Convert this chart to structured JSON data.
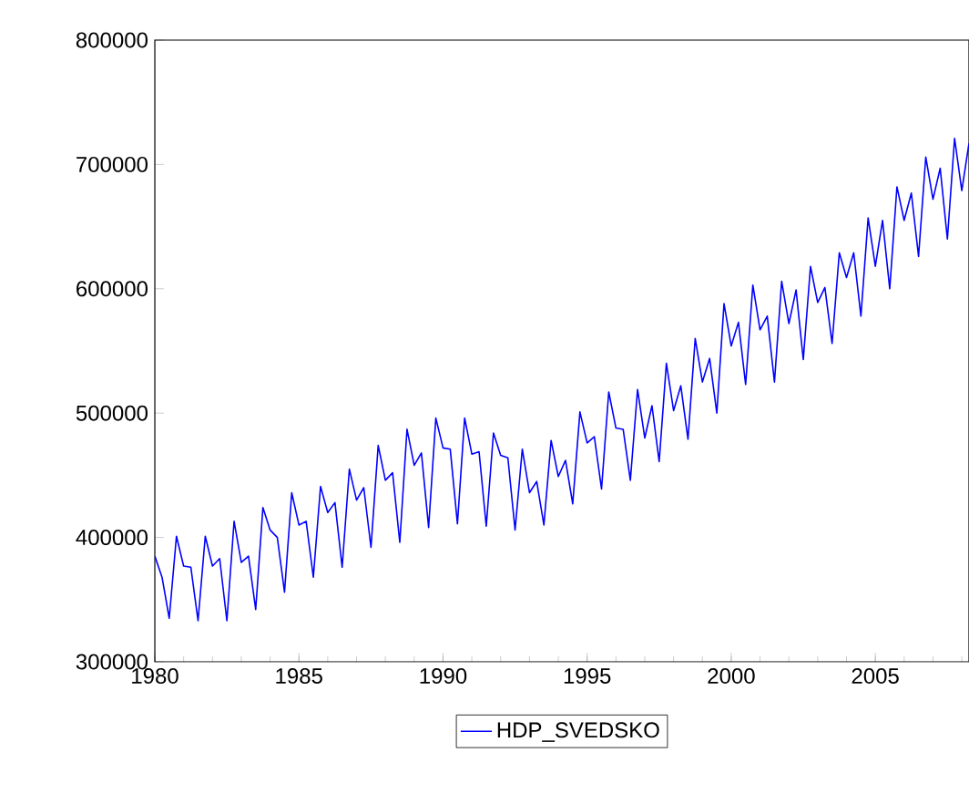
{
  "chart_data": {
    "type": "line",
    "x": [
      1980.0,
      1980.25,
      1980.5,
      1980.75,
      1981.0,
      1981.25,
      1981.5,
      1981.75,
      1982.0,
      1982.25,
      1982.5,
      1982.75,
      1983.0,
      1983.25,
      1983.5,
      1983.75,
      1984.0,
      1984.25,
      1984.5,
      1984.75,
      1985.0,
      1985.25,
      1985.5,
      1985.75,
      1986.0,
      1986.25,
      1986.5,
      1986.75,
      1987.0,
      1987.25,
      1987.5,
      1987.75,
      1988.0,
      1988.25,
      1988.5,
      1988.75,
      1989.0,
      1989.25,
      1989.5,
      1989.75,
      1990.0,
      1990.25,
      1990.5,
      1990.75,
      1991.0,
      1991.25,
      1991.5,
      1991.75,
      1992.0,
      1992.25,
      1992.5,
      1992.75,
      1993.0,
      1993.25,
      1993.5,
      1993.75,
      1994.0,
      1994.25,
      1994.5,
      1994.75,
      1995.0,
      1995.25,
      1995.5,
      1995.75,
      1996.0,
      1996.25,
      1996.5,
      1996.75,
      1997.0,
      1997.25,
      1997.5,
      1997.75,
      1998.0,
      1998.25,
      1998.5,
      1998.75,
      1999.0,
      1999.25,
      1999.5,
      1999.75,
      2000.0,
      2000.25,
      2000.5,
      2000.75,
      2001.0,
      2001.25,
      2001.5,
      2001.75,
      2002.0,
      2002.25,
      2002.5,
      2002.75,
      2003.0,
      2003.25,
      2003.5,
      2003.75,
      2004.0,
      2004.25,
      2004.5,
      2004.75,
      2005.0,
      2005.25,
      2005.5,
      2005.75,
      2006.0,
      2006.25,
      2006.5,
      2006.75,
      2007.0,
      2007.25,
      2007.5,
      2007.75,
      2008.0,
      2008.25
    ],
    "series": [
      {
        "name": "HDP_SVEDSKO",
        "color": "#0000ff",
        "values": [
          385000,
          368000,
          335000,
          401000,
          377000,
          376000,
          333000,
          401000,
          377000,
          383000,
          333000,
          413000,
          380000,
          385000,
          342000,
          424000,
          406000,
          400000,
          356000,
          436000,
          410000,
          413000,
          368000,
          441000,
          420000,
          428000,
          376000,
          455000,
          430000,
          440000,
          392000,
          474000,
          446000,
          452000,
          396000,
          487000,
          458000,
          468000,
          408000,
          496000,
          472000,
          471000,
          411000,
          496000,
          467000,
          469000,
          409000,
          484000,
          466000,
          464000,
          406000,
          471000,
          436000,
          445000,
          410000,
          478000,
          449000,
          462000,
          427000,
          501000,
          476000,
          481000,
          439000,
          517000,
          488000,
          487000,
          446000,
          519000,
          480000,
          506000,
          461000,
          540000,
          502000,
          522000,
          479000,
          560000,
          525000,
          544000,
          500000,
          588000,
          554000,
          573000,
          523000,
          603000,
          567000,
          578000,
          525000,
          606000,
          572000,
          599000,
          543000,
          618000,
          589000,
          601000,
          556000,
          629000,
          609000,
          629000,
          578000,
          657000,
          618000,
          655000,
          600000,
          682000,
          655000,
          677000,
          626000,
          706000,
          672000,
          697000,
          640000,
          721000,
          679000,
          717000
        ]
      }
    ],
    "xlim": [
      1980,
      2008.25
    ],
    "xticks": [
      1980,
      1985,
      1990,
      1995,
      2000,
      2005
    ],
    "ylim": [
      300000,
      800000
    ],
    "yticks": [
      300000,
      400000,
      500000,
      600000,
      700000,
      800000
    ],
    "legend": "bottom",
    "marker": "none",
    "line_style": "solid"
  }
}
